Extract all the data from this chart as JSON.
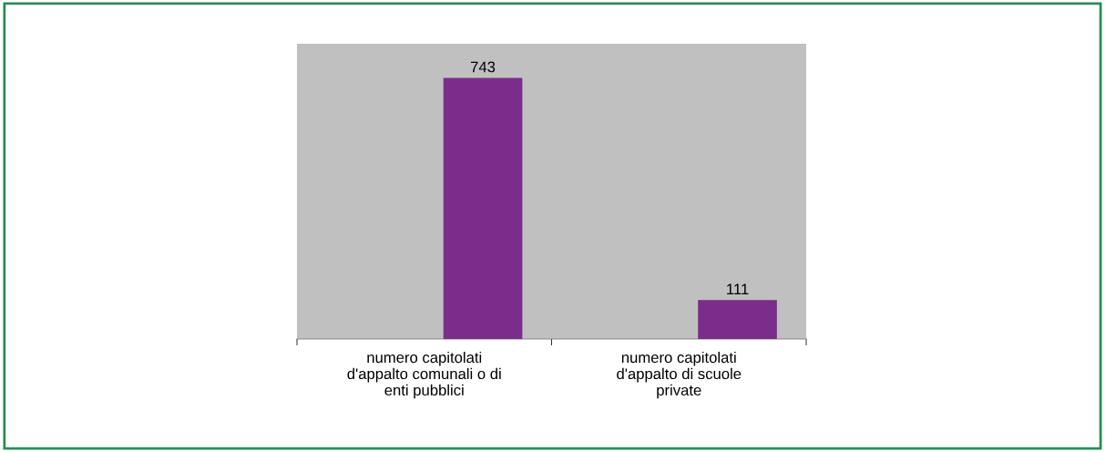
{
  "chart_data": {
    "type": "bar",
    "categories": [
      "numero capitolati\nd'appalto comunali o di\nenti pubblici",
      "numero capitolati\nd'appalto di scuole\nprivate"
    ],
    "values": [
      743,
      111
    ],
    "color": "#7b2d8b",
    "ylim": [
      0,
      840
    ],
    "data_labels": true,
    "tick_labels": "x"
  }
}
